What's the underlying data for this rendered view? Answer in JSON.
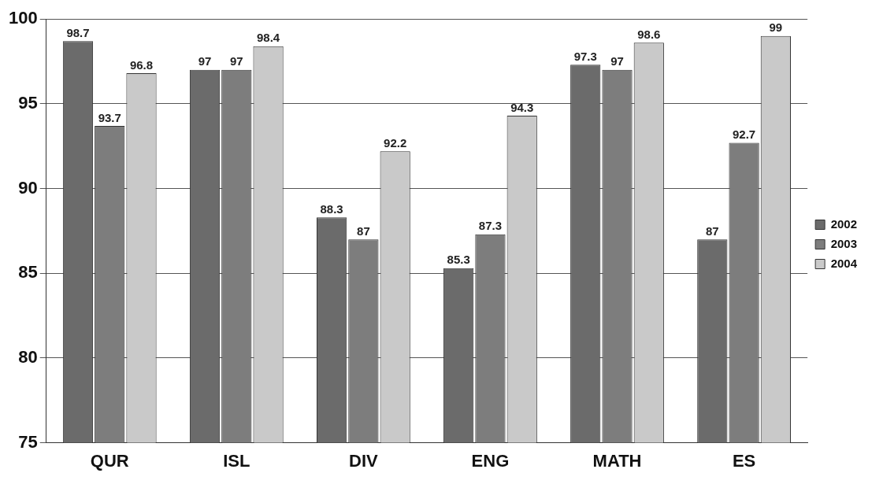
{
  "chart_data": {
    "type": "bar",
    "categories": [
      "QUR",
      "ISL",
      "DIV",
      "ENG",
      "MATH",
      "ES"
    ],
    "series": [
      {
        "name": "2002",
        "color": "#6b6b6b",
        "values": [
          98.7,
          97,
          88.3,
          85.3,
          97.3,
          87
        ]
      },
      {
        "name": "2003",
        "color": "#7d7d7d",
        "values": [
          93.7,
          97,
          87,
          87.3,
          97,
          92.7
        ]
      },
      {
        "name": "2004",
        "color": "#c9c9c9",
        "values": [
          96.8,
          98.4,
          92.2,
          94.3,
          98.6,
          99
        ]
      }
    ],
    "ylim": [
      75,
      100
    ],
    "yticks": [
      75,
      80,
      85,
      90,
      95,
      100
    ],
    "grid": "y",
    "legend": "right",
    "data_labels": true
  }
}
